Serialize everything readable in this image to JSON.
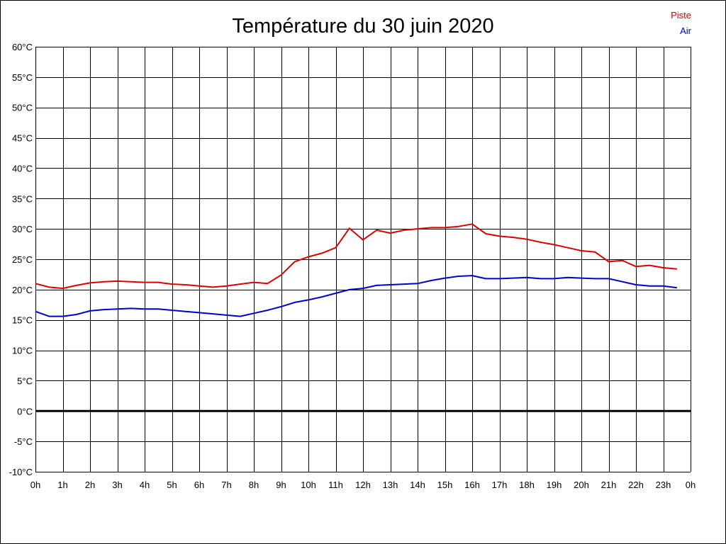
{
  "chart_data": {
    "type": "line",
    "title": "Température du 30 juin 2020",
    "x_tick_labels": [
      "0h",
      "1h",
      "2h",
      "3h",
      "4h",
      "5h",
      "6h",
      "7h",
      "8h",
      "9h",
      "10h",
      "11h",
      "12h",
      "13h",
      "14h",
      "15h",
      "16h",
      "17h",
      "18h",
      "19h",
      "20h",
      "21h",
      "22h",
      "23h",
      "0h"
    ],
    "y_tick_labels": [
      "60°C",
      "55°C",
      "50°C",
      "45°C",
      "40°C",
      "35°C",
      "30°C",
      "25°C",
      "20°C",
      "15°C",
      "10°C",
      "5°C",
      "0°C",
      "-5°C",
      "-10°C"
    ],
    "xlim": [
      0,
      24
    ],
    "ylim": [
      -10,
      60
    ],
    "grid": true,
    "zero_line": true,
    "legend_position": "top-right",
    "series": [
      {
        "name": "Piste",
        "color": "#dd0000",
        "x": [
          0,
          0.5,
          1,
          1.5,
          2,
          2.5,
          3,
          3.5,
          4,
          4.5,
          5,
          5.5,
          6,
          6.5,
          7,
          7.5,
          8,
          8.5,
          9,
          9.5,
          10,
          10.5,
          11,
          11.5,
          12,
          12.5,
          13,
          13.5,
          14,
          14.5,
          15,
          15.5,
          16,
          16.5,
          17,
          17.5,
          18,
          18.5,
          19,
          19.5,
          20,
          20.5,
          21,
          21.5,
          22,
          22.5,
          23,
          23.5
        ],
        "y": [
          21.0,
          20.4,
          20.2,
          20.7,
          21.1,
          21.3,
          21.4,
          21.3,
          21.2,
          21.2,
          20.9,
          20.8,
          20.6,
          20.4,
          20.6,
          20.9,
          21.2,
          21.0,
          22.4,
          24.6,
          25.4,
          26.0,
          26.9,
          30.1,
          28.2,
          29.8,
          29.3,
          29.8,
          30.0,
          30.2,
          30.2,
          30.4,
          30.8,
          29.2,
          28.8,
          28.6,
          28.3,
          27.8,
          27.4,
          26.9,
          26.4,
          26.2,
          24.6,
          24.8,
          23.8,
          24.0,
          23.6,
          23.4
        ]
      },
      {
        "name": "Air",
        "color": "#0000cc",
        "x": [
          0,
          0.5,
          1,
          1.5,
          2,
          2.5,
          3,
          3.5,
          4,
          4.5,
          5,
          5.5,
          6,
          6.5,
          7,
          7.5,
          8,
          8.5,
          9,
          9.5,
          10,
          10.5,
          11,
          11.5,
          12,
          12.5,
          13,
          13.5,
          14,
          14.5,
          15,
          15.5,
          16,
          16.5,
          17,
          17.5,
          18,
          18.5,
          19,
          19.5,
          20,
          20.5,
          21,
          21.5,
          22,
          22.5,
          23,
          23.5
        ],
        "y": [
          16.4,
          15.6,
          15.6,
          15.9,
          16.5,
          16.7,
          16.8,
          16.9,
          16.8,
          16.8,
          16.6,
          16.4,
          16.2,
          16.0,
          15.8,
          15.6,
          16.1,
          16.6,
          17.2,
          17.9,
          18.3,
          18.8,
          19.4,
          20.0,
          20.2,
          20.7,
          20.8,
          20.9,
          21.0,
          21.5,
          21.9,
          22.2,
          22.3,
          21.8,
          21.8,
          21.9,
          22.0,
          21.8,
          21.8,
          22.0,
          21.9,
          21.8,
          21.8,
          21.3,
          20.8,
          20.6,
          20.6,
          20.3
        ]
      }
    ]
  }
}
